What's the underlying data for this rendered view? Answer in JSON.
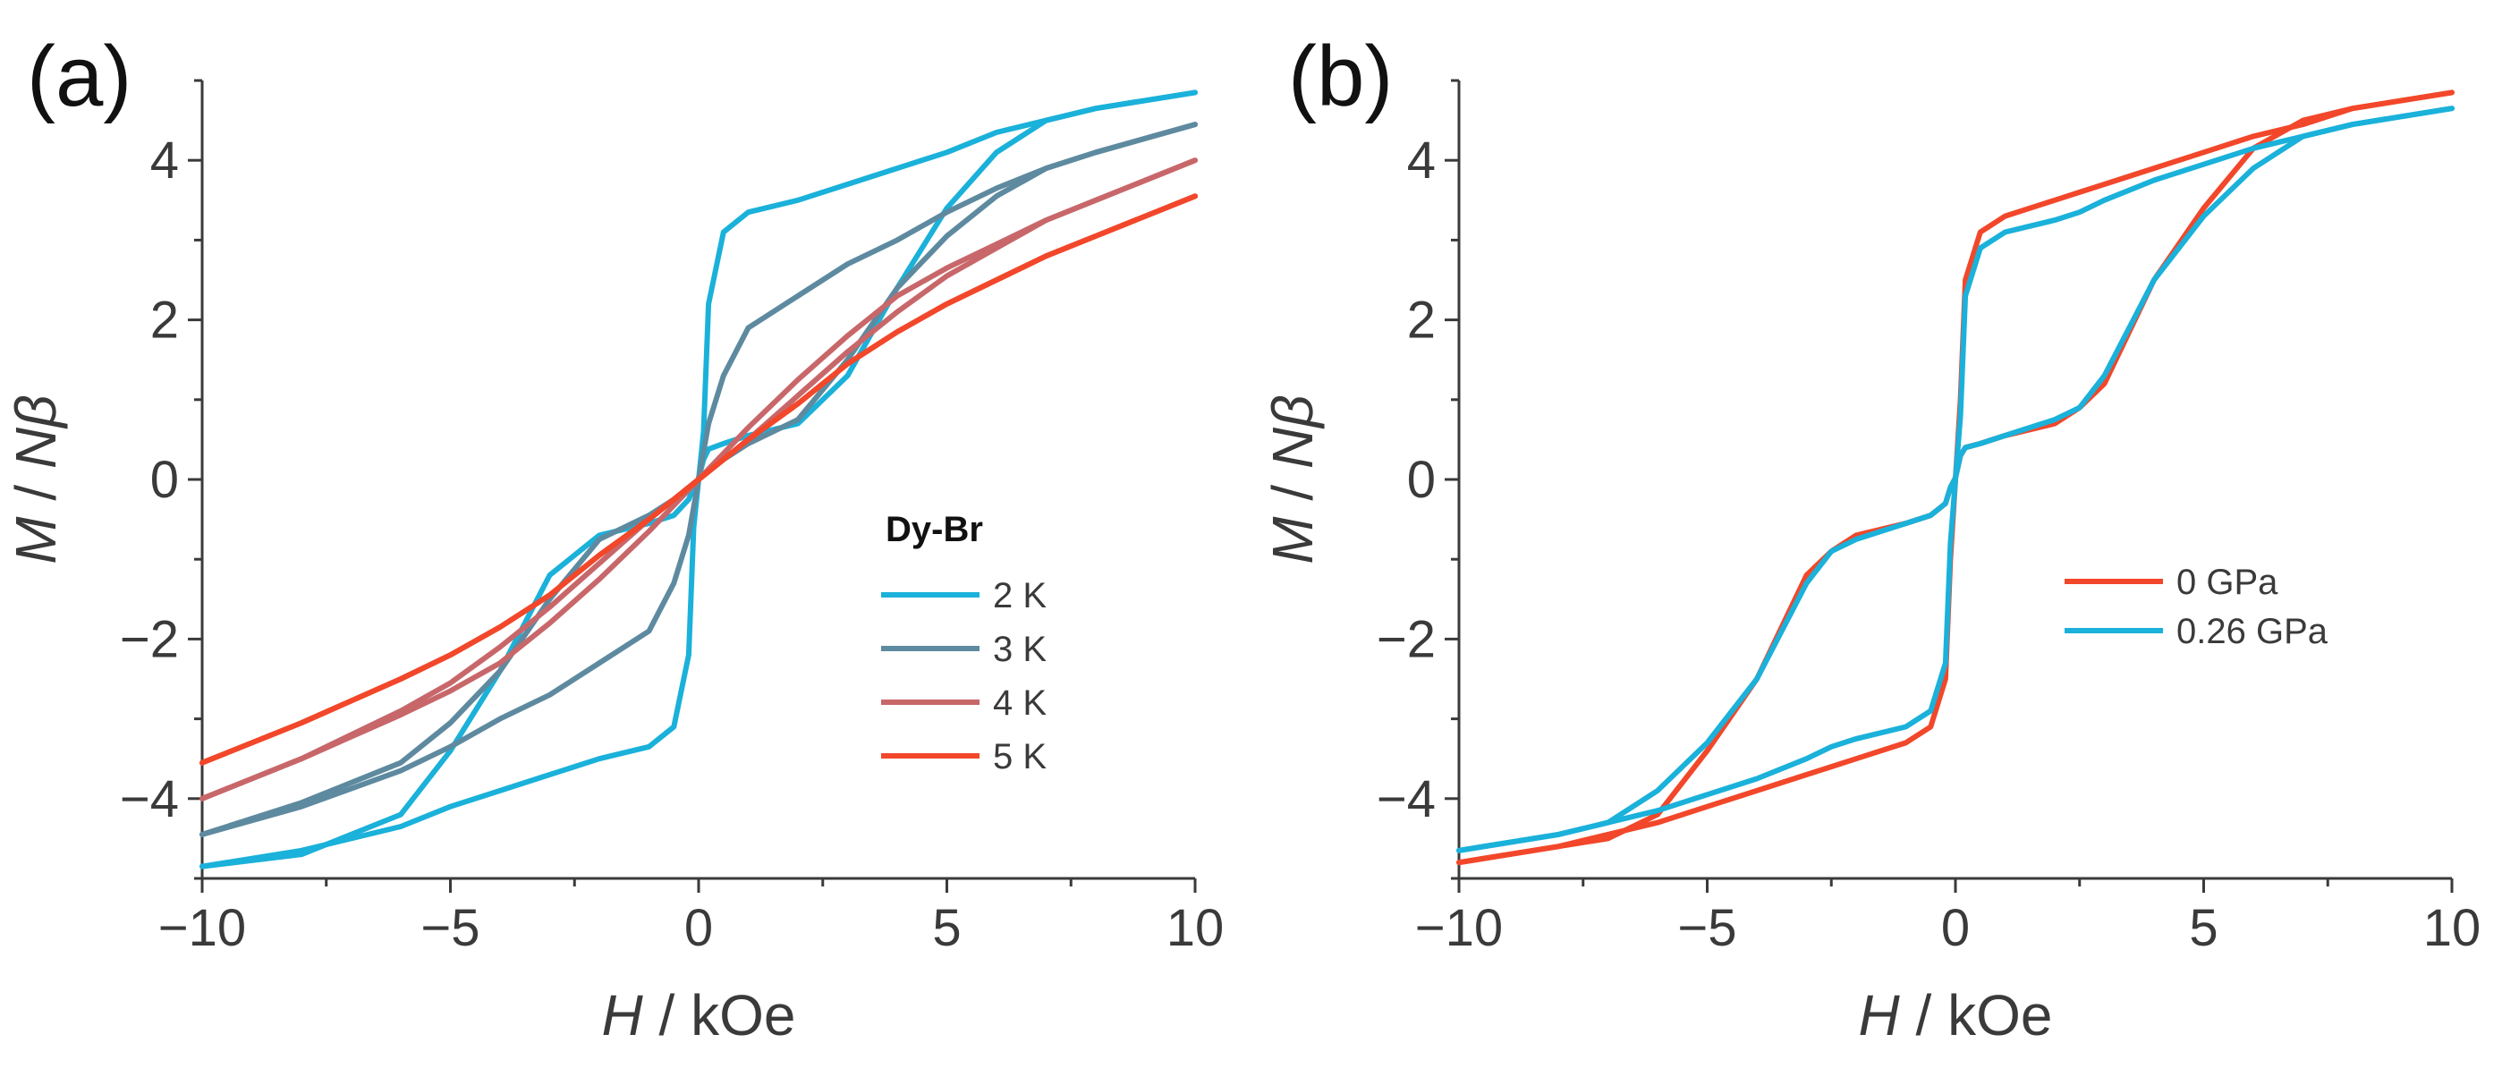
{
  "chart_data": [
    {
      "panel": "(a)",
      "type": "line",
      "xlabel_italic": "H",
      "xlabel_rest": " / kOe",
      "ylabel_italic_1": "M",
      "ylabel_sep": " / ",
      "ylabel_italic_2": "Nβ",
      "xlim": [
        -10,
        10
      ],
      "ylim": [
        -5,
        5
      ],
      "xticks": [
        -10,
        -5,
        0,
        5,
        10
      ],
      "xtick_labels": [
        "−10",
        "−5",
        "0",
        "5",
        "10"
      ],
      "yticks": [
        -4,
        -2,
        0,
        2,
        4
      ],
      "ytick_labels": [
        "−4",
        "−2",
        "0",
        "2",
        "4"
      ],
      "legend_title": "Dy-Br",
      "series": [
        {
          "name": "2 K",
          "color": "#1ab1da",
          "x": [
            -10,
            -8,
            -6,
            -5,
            -4,
            -3,
            -2,
            -1,
            -0.5,
            -0.2,
            -0.1,
            0,
            0.1,
            0.2,
            0.5,
            1,
            2,
            3,
            4,
            5,
            6,
            7,
            8,
            10
          ],
          "up": [
            -4.85,
            -4.7,
            -4.2,
            -3.4,
            -2.4,
            -1.2,
            -0.7,
            -0.55,
            -0.45,
            -0.25,
            -0.1,
            0.02,
            0.25,
            0.38,
            0.45,
            0.55,
            0.7,
            1.3,
            2.4,
            3.4,
            4.1,
            4.5,
            4.65,
            4.85
          ],
          "down": [
            -4.85,
            -4.65,
            -4.35,
            -4.1,
            -3.9,
            -3.7,
            -3.5,
            -3.35,
            -3.1,
            -2.2,
            -0.6,
            0,
            0.6,
            2.2,
            3.1,
            3.35,
            3.5,
            3.7,
            3.9,
            4.1,
            4.35,
            4.5,
            4.65,
            4.85
          ]
        },
        {
          "name": "3 K",
          "color": "#5e8aa0",
          "x": [
            -10,
            -8,
            -6,
            -5,
            -4,
            -3,
            -2,
            -1,
            -0.5,
            -0.2,
            0,
            0.2,
            0.5,
            1,
            2,
            3,
            4,
            5,
            6,
            7,
            8,
            10
          ],
          "up": [
            -4.45,
            -4.05,
            -3.55,
            -3.05,
            -2.4,
            -1.5,
            -0.75,
            -0.45,
            -0.25,
            -0.1,
            0,
            0.1,
            0.25,
            0.45,
            0.75,
            1.5,
            2.4,
            3.05,
            3.55,
            3.9,
            4.1,
            4.45
          ],
          "down": [
            -4.45,
            -4.1,
            -3.65,
            -3.35,
            -3.0,
            -2.7,
            -2.3,
            -1.9,
            -1.3,
            -0.7,
            0,
            0.7,
            1.3,
            1.9,
            2.3,
            2.7,
            3.0,
            3.35,
            3.65,
            3.9,
            4.1,
            4.45
          ]
        },
        {
          "name": "4 K",
          "color": "#c8676a",
          "x": [
            -10,
            -8,
            -6,
            -5,
            -4,
            -3,
            -2,
            -1,
            0,
            1,
            2,
            3,
            4,
            5,
            6,
            7,
            8,
            10
          ],
          "up": [
            -4.0,
            -3.5,
            -2.9,
            -2.55,
            -2.1,
            -1.6,
            -1.05,
            -0.5,
            0,
            0.5,
            1.05,
            1.6,
            2.1,
            2.55,
            2.9,
            3.25,
            3.5,
            4.0
          ],
          "down": [
            -4.0,
            -3.5,
            -2.95,
            -2.65,
            -2.3,
            -1.8,
            -1.25,
            -0.65,
            0,
            0.65,
            1.25,
            1.8,
            2.3,
            2.65,
            2.95,
            3.25,
            3.5,
            4.0
          ]
        },
        {
          "name": "5 K",
          "color": "#f2472a",
          "x": [
            -10,
            -8,
            -6,
            -5,
            -4,
            -3,
            -2,
            -1,
            0,
            1,
            2,
            3,
            4,
            5,
            6,
            7,
            8,
            10
          ],
          "up": [
            -3.55,
            -3.05,
            -2.5,
            -2.2,
            -1.85,
            -1.45,
            -0.95,
            -0.5,
            0,
            0.5,
            0.95,
            1.45,
            1.85,
            2.2,
            2.5,
            2.8,
            3.05,
            3.55
          ],
          "down": [
            -3.55,
            -3.05,
            -2.5,
            -2.2,
            -1.85,
            -1.45,
            -0.95,
            -0.5,
            0,
            0.5,
            0.95,
            1.45,
            1.85,
            2.2,
            2.5,
            2.8,
            3.05,
            3.55
          ]
        }
      ]
    },
    {
      "panel": "(b)",
      "type": "line",
      "xlabel_italic": "H",
      "xlabel_rest": " / kOe",
      "ylabel_italic_1": "M",
      "ylabel_sep": " / ",
      "ylabel_italic_2": "Nβ",
      "xlim": [
        -10,
        10
      ],
      "ylim": [
        -5,
        5
      ],
      "xticks": [
        -10,
        -5,
        0,
        5,
        10
      ],
      "xtick_labels": [
        "−10",
        "−5",
        "0",
        "5",
        "10"
      ],
      "yticks": [
        -4,
        -2,
        0,
        2,
        4
      ],
      "ytick_labels": [
        "−4",
        "−2",
        "0",
        "2",
        "4"
      ],
      "legend_title": "",
      "series": [
        {
          "name": "0 GPa",
          "color": "#f2472a",
          "x": [
            -10,
            -8,
            -7,
            -6,
            -5,
            -4,
            -3,
            -2.5,
            -2,
            -1,
            -0.5,
            -0.2,
            -0.1,
            0,
            0.1,
            0.2,
            0.5,
            1,
            2,
            2.5,
            3,
            4,
            5,
            6,
            7,
            8,
            10
          ],
          "up": [
            -4.8,
            -4.6,
            -4.5,
            -4.2,
            -3.4,
            -2.5,
            -1.2,
            -0.9,
            -0.7,
            -0.55,
            -0.45,
            -0.3,
            -0.1,
            0.02,
            0.3,
            0.4,
            0.45,
            0.55,
            0.7,
            0.9,
            1.2,
            2.5,
            3.4,
            4.15,
            4.5,
            4.65,
            4.85
          ],
          "down": [
            -4.8,
            -4.6,
            -4.45,
            -4.3,
            -4.1,
            -3.9,
            -3.7,
            -3.6,
            -3.5,
            -3.3,
            -3.1,
            -2.5,
            -1.0,
            0,
            1.0,
            2.5,
            3.1,
            3.3,
            3.5,
            3.6,
            3.7,
            3.9,
            4.1,
            4.3,
            4.45,
            4.65,
            4.85
          ]
        },
        {
          "name": "0.26 GPa",
          "color": "#1ab1da",
          "x": [
            -10,
            -8,
            -7,
            -6,
            -5,
            -4,
            -3,
            -2.5,
            -2,
            -1,
            -0.5,
            -0.2,
            -0.1,
            0,
            0.1,
            0.2,
            0.5,
            1,
            2,
            2.5,
            3,
            4,
            5,
            6,
            7,
            8,
            10
          ],
          "up": [
            -4.65,
            -4.45,
            -4.3,
            -3.9,
            -3.3,
            -2.5,
            -1.3,
            -0.9,
            -0.75,
            -0.55,
            -0.45,
            -0.3,
            -0.1,
            0.02,
            0.3,
            0.4,
            0.45,
            0.55,
            0.75,
            0.9,
            1.3,
            2.5,
            3.3,
            3.9,
            4.3,
            4.45,
            4.65
          ],
          "down": [
            -4.65,
            -4.45,
            -4.3,
            -4.15,
            -3.95,
            -3.75,
            -3.5,
            -3.35,
            -3.25,
            -3.1,
            -2.9,
            -2.3,
            -0.8,
            0,
            0.8,
            2.3,
            2.9,
            3.1,
            3.25,
            3.35,
            3.5,
            3.75,
            3.95,
            4.15,
            4.3,
            4.45,
            4.65
          ]
        }
      ]
    }
  ]
}
